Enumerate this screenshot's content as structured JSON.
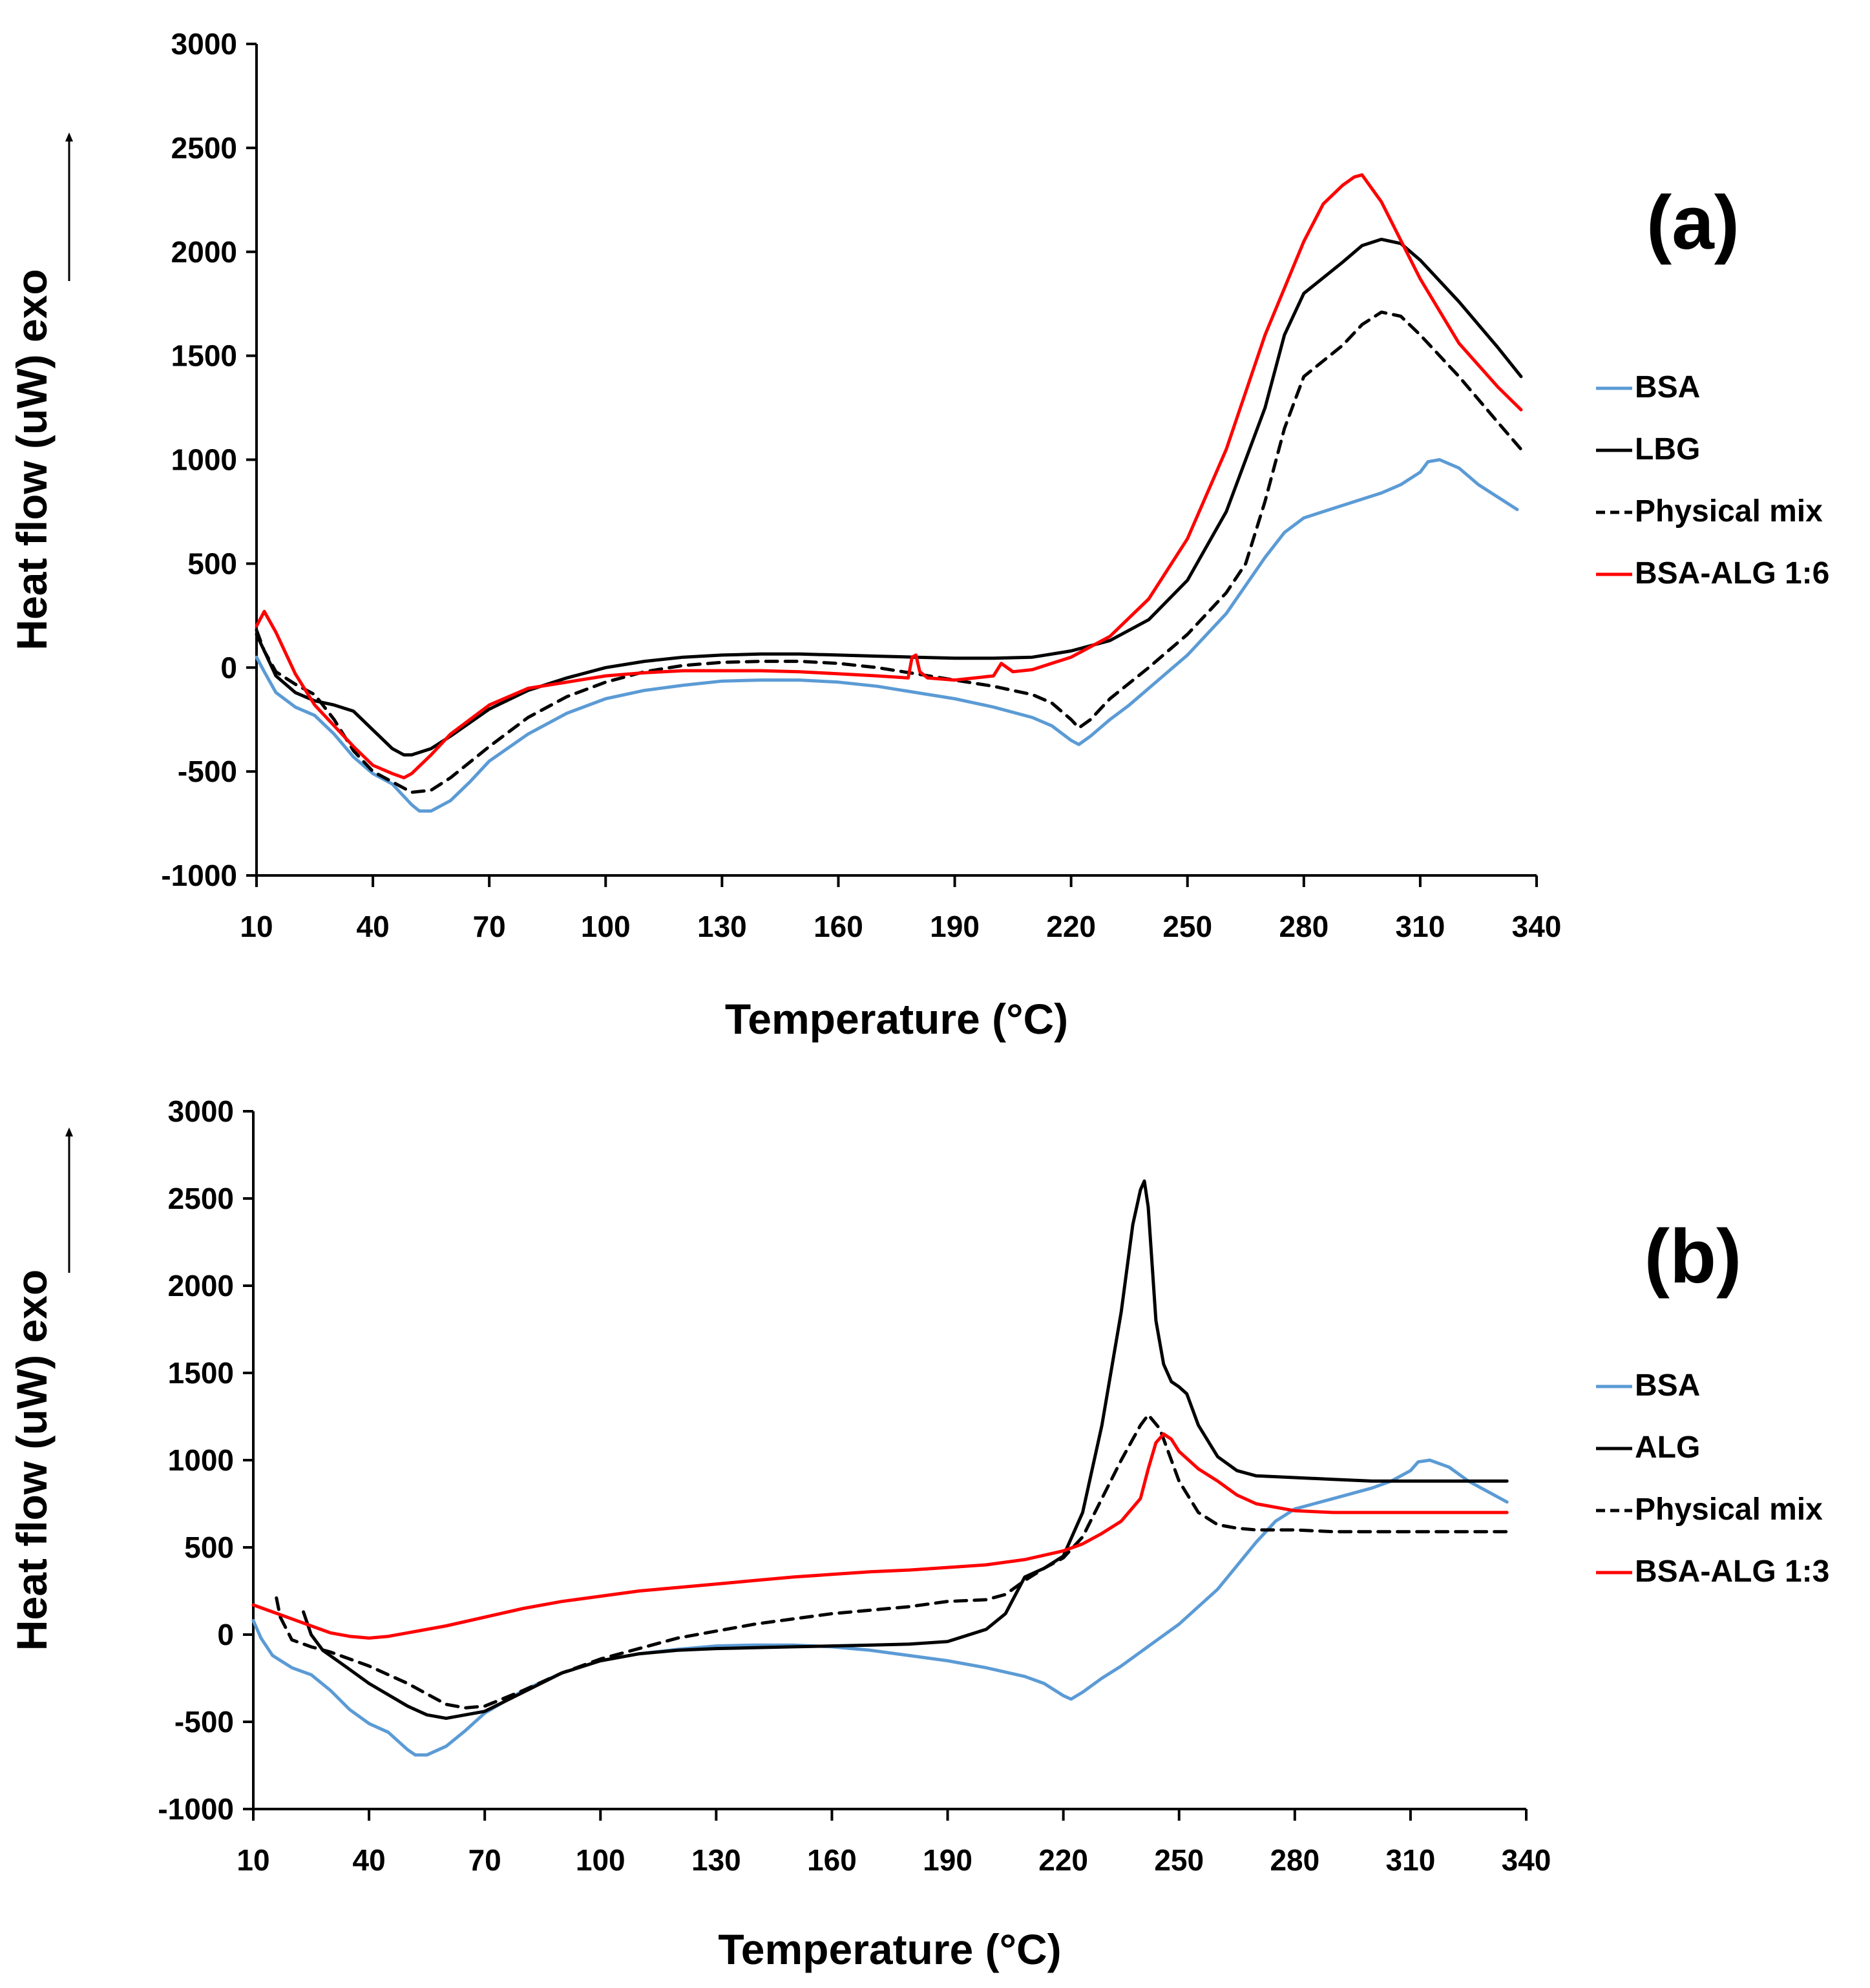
{
  "chart_data": [
    {
      "type": "line",
      "panel_label": "(a)",
      "xlabel": "Temperature (°C)",
      "ylabel": "Heat flow (uW) exo",
      "xlim": [
        10,
        340
      ],
      "ylim": [
        -1000,
        3000
      ],
      "xticks": [
        10,
        40,
        70,
        100,
        130,
        160,
        190,
        220,
        250,
        280,
        310,
        340
      ],
      "yticks": [
        -1000,
        -500,
        0,
        500,
        1000,
        1500,
        2000,
        2500,
        3000
      ],
      "legend_position": "right",
      "series": [
        {
          "name": "BSA",
          "color": "#5b9bd5",
          "dash": "solid",
          "x": [
            10,
            12,
            15,
            20,
            25,
            30,
            35,
            40,
            45,
            50,
            52,
            55,
            60,
            65,
            70,
            80,
            90,
            100,
            110,
            120,
            130,
            140,
            150,
            160,
            170,
            180,
            190,
            200,
            210,
            215,
            220,
            222,
            225,
            230,
            235,
            240,
            250,
            260,
            270,
            275,
            280,
            290,
            300,
            305,
            310,
            312,
            315,
            320,
            325,
            330,
            335
          ],
          "y": [
            50,
            -20,
            -120,
            -190,
            -230,
            -320,
            -430,
            -510,
            -560,
            -660,
            -690,
            -690,
            -640,
            -550,
            -450,
            -320,
            -220,
            -150,
            -110,
            -85,
            -65,
            -60,
            -60,
            -70,
            -90,
            -120,
            -150,
            -190,
            -240,
            -280,
            -350,
            -370,
            -330,
            -250,
            -180,
            -100,
            60,
            260,
            530,
            650,
            720,
            780,
            840,
            880,
            940,
            990,
            1000,
            960,
            880,
            820,
            760
          ]
        },
        {
          "name": "LBG",
          "color": "#000000",
          "dash": "solid",
          "x": [
            10,
            12,
            15,
            20,
            25,
            30,
            35,
            40,
            45,
            48,
            50,
            55,
            60,
            70,
            80,
            90,
            100,
            110,
            120,
            130,
            140,
            150,
            160,
            170,
            180,
            190,
            200,
            210,
            220,
            230,
            240,
            250,
            260,
            270,
            275,
            280,
            290,
            295,
            300,
            305,
            310,
            320,
            330,
            336
          ],
          "y": [
            160,
            80,
            -40,
            -120,
            -160,
            -180,
            -210,
            -300,
            -390,
            -420,
            -420,
            -390,
            -330,
            -200,
            -110,
            -50,
            0,
            30,
            50,
            60,
            65,
            65,
            60,
            55,
            50,
            45,
            45,
            50,
            80,
            130,
            230,
            420,
            750,
            1250,
            1600,
            1800,
            1950,
            2030,
            2060,
            2040,
            1960,
            1760,
            1540,
            1400
          ]
        },
        {
          "name": "Physical mix",
          "color": "#000000",
          "dash": "dashed",
          "x": [
            10,
            12,
            15,
            20,
            25,
            30,
            35,
            40,
            45,
            50,
            55,
            60,
            70,
            80,
            90,
            100,
            110,
            120,
            130,
            140,
            150,
            160,
            170,
            180,
            190,
            200,
            210,
            215,
            220,
            222,
            225,
            230,
            240,
            250,
            260,
            265,
            270,
            275,
            280,
            290,
            295,
            300,
            305,
            310,
            320,
            330,
            336
          ],
          "y": [
            180,
            80,
            -20,
            -80,
            -130,
            -250,
            -400,
            -500,
            -550,
            -600,
            -590,
            -530,
            -380,
            -240,
            -140,
            -70,
            -20,
            10,
            25,
            30,
            30,
            20,
            0,
            -30,
            -60,
            -90,
            -130,
            -170,
            -250,
            -290,
            -250,
            -150,
            0,
            160,
            360,
            500,
            800,
            1150,
            1400,
            1550,
            1650,
            1710,
            1690,
            1600,
            1400,
            1180,
            1050
          ]
        },
        {
          "name": "BSA-ALG 1:6",
          "color": "#ff0000",
          "dash": "solid",
          "x": [
            10,
            12,
            15,
            20,
            25,
            30,
            35,
            40,
            45,
            48,
            50,
            55,
            60,
            70,
            80,
            90,
            100,
            110,
            120,
            130,
            140,
            150,
            160,
            170,
            178,
            179,
            180,
            181,
            183,
            190,
            200,
            202,
            205,
            210,
            215,
            220,
            230,
            240,
            250,
            260,
            270,
            280,
            285,
            290,
            293,
            295,
            300,
            310,
            320,
            330,
            336
          ],
          "y": [
            200,
            270,
            170,
            -30,
            -180,
            -280,
            -380,
            -470,
            -510,
            -530,
            -510,
            -420,
            -320,
            -180,
            -100,
            -70,
            -40,
            -25,
            -15,
            -15,
            -15,
            -20,
            -30,
            -40,
            -50,
            50,
            60,
            -20,
            -50,
            -60,
            -40,
            20,
            -20,
            -10,
            20,
            50,
            150,
            330,
            620,
            1050,
            1600,
            2050,
            2230,
            2320,
            2360,
            2370,
            2240,
            1870,
            1560,
            1350,
            1240
          ]
        }
      ]
    },
    {
      "type": "line",
      "panel_label": "(b)",
      "xlabel": "Temperature (°C)",
      "ylabel": "Heat flow (uW) exo",
      "xlim": [
        10,
        340
      ],
      "ylim": [
        -1000,
        3000
      ],
      "xticks": [
        10,
        40,
        70,
        100,
        130,
        160,
        190,
        220,
        250,
        280,
        310,
        340
      ],
      "yticks": [
        -1000,
        -500,
        0,
        500,
        1000,
        1500,
        2000,
        2500,
        3000
      ],
      "legend_position": "right",
      "series": [
        {
          "name": "BSA",
          "color": "#5b9bd5",
          "dash": "solid",
          "x": [
            10,
            12,
            15,
            20,
            25,
            30,
            35,
            40,
            45,
            50,
            52,
            55,
            60,
            65,
            70,
            80,
            90,
            100,
            110,
            120,
            130,
            140,
            150,
            160,
            170,
            180,
            190,
            200,
            210,
            215,
            220,
            222,
            225,
            230,
            235,
            240,
            250,
            260,
            270,
            275,
            280,
            290,
            300,
            305,
            310,
            312,
            315,
            320,
            325,
            330,
            335
          ],
          "y": [
            80,
            -20,
            -120,
            -190,
            -230,
            -320,
            -430,
            -510,
            -560,
            -660,
            -690,
            -690,
            -640,
            -550,
            -450,
            -320,
            -220,
            -150,
            -110,
            -85,
            -65,
            -60,
            -60,
            -70,
            -90,
            -120,
            -150,
            -190,
            -240,
            -280,
            -350,
            -370,
            -330,
            -250,
            -180,
            -100,
            60,
            260,
            530,
            650,
            720,
            780,
            840,
            880,
            940,
            990,
            1000,
            960,
            880,
            820,
            760
          ]
        },
        {
          "name": "ALG",
          "color": "#000000",
          "dash": "solid",
          "x": [
            23,
            25,
            28,
            35,
            40,
            50,
            55,
            60,
            70,
            80,
            90,
            100,
            110,
            120,
            130,
            140,
            150,
            160,
            170,
            180,
            190,
            200,
            205,
            210,
            215,
            220,
            225,
            230,
            235,
            238,
            240,
            241,
            242,
            244,
            246,
            248,
            250,
            252,
            255,
            260,
            265,
            270,
            280,
            290,
            300,
            310,
            320,
            330,
            335
          ],
          "y": [
            130,
            0,
            -90,
            -200,
            -280,
            -410,
            -460,
            -480,
            -440,
            -330,
            -220,
            -150,
            -110,
            -90,
            -80,
            -75,
            -70,
            -65,
            -60,
            -55,
            -40,
            30,
            120,
            330,
            380,
            450,
            700,
            1200,
            1850,
            2350,
            2550,
            2600,
            2450,
            1800,
            1550,
            1450,
            1420,
            1380,
            1200,
            1020,
            940,
            910,
            900,
            890,
            880,
            880,
            880,
            880,
            880
          ]
        },
        {
          "name": "Physical mix",
          "color": "#000000",
          "dash": "dashed",
          "x": [
            16,
            17,
            20,
            25,
            30,
            40,
            50,
            60,
            65,
            70,
            80,
            90,
            100,
            110,
            120,
            130,
            140,
            150,
            160,
            170,
            180,
            190,
            200,
            205,
            210,
            215,
            220,
            225,
            230,
            235,
            240,
            242,
            245,
            250,
            255,
            260,
            265,
            270,
            280,
            290,
            300,
            310,
            320,
            330,
            335
          ],
          "y": [
            210,
            100,
            -30,
            -70,
            -100,
            -180,
            -280,
            -400,
            -420,
            -410,
            -320,
            -220,
            -140,
            -80,
            -20,
            20,
            60,
            90,
            120,
            140,
            160,
            190,
            200,
            230,
            310,
            380,
            440,
            560,
            780,
            1000,
            1200,
            1260,
            1180,
            880,
            700,
            630,
            610,
            600,
            600,
            590,
            590,
            590,
            590,
            590,
            590
          ]
        },
        {
          "name": "BSA-ALG 1:3",
          "color": "#ff0000",
          "dash": "solid",
          "x": [
            10,
            15,
            20,
            25,
            30,
            35,
            40,
            45,
            50,
            60,
            70,
            80,
            90,
            100,
            110,
            120,
            130,
            140,
            150,
            160,
            170,
            180,
            190,
            200,
            210,
            220,
            225,
            230,
            235,
            240,
            242,
            244,
            246,
            248,
            250,
            255,
            260,
            265,
            270,
            280,
            290,
            300,
            310,
            320,
            330,
            335
          ],
          "y": [
            170,
            130,
            90,
            50,
            10,
            -10,
            -20,
            -10,
            10,
            50,
            100,
            150,
            190,
            220,
            250,
            270,
            290,
            310,
            330,
            345,
            360,
            370,
            385,
            400,
            430,
            480,
            520,
            580,
            650,
            780,
            950,
            1100,
            1150,
            1120,
            1050,
            950,
            880,
            800,
            750,
            710,
            700,
            700,
            700,
            700,
            700,
            700
          ]
        }
      ]
    }
  ]
}
